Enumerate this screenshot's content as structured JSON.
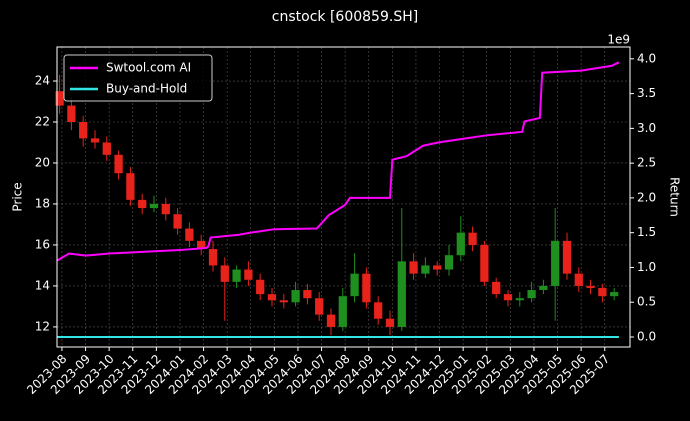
{
  "chart_data": {
    "type": "candlestick",
    "title": "cnstock [600859.SH]",
    "ylabel": "Price",
    "y2label": "Return",
    "y2_offset_label": "1e9",
    "xlim": [
      -0.21,
      24.07
    ],
    "xticks": [
      {
        "value": 0,
        "label": "2023-08"
      },
      {
        "value": 1,
        "label": "2023-09"
      },
      {
        "value": 2,
        "label": "2023-10"
      },
      {
        "value": 3,
        "label": "2023-11"
      },
      {
        "value": 4,
        "label": "2023-12"
      },
      {
        "value": 5,
        "label": "2024-01"
      },
      {
        "value": 6,
        "label": "2024-02"
      },
      {
        "value": 7,
        "label": "2024-03"
      },
      {
        "value": 8,
        "label": "2024-04"
      },
      {
        "value": 9,
        "label": "2024-05"
      },
      {
        "value": 10,
        "label": "2024-06"
      },
      {
        "value": 11,
        "label": "2024-07"
      },
      {
        "value": 12,
        "label": "2024-08"
      },
      {
        "value": 13,
        "label": "2024-09"
      },
      {
        "value": 14,
        "label": "2024-10"
      },
      {
        "value": 15,
        "label": "2024-11"
      },
      {
        "value": 16,
        "label": "2024-12"
      },
      {
        "value": 17,
        "label": "2025-01"
      },
      {
        "value": 18,
        "label": "2025-02"
      },
      {
        "value": 19,
        "label": "2025-03"
      },
      {
        "value": 20,
        "label": "2025-04"
      },
      {
        "value": 21,
        "label": "2025-05"
      },
      {
        "value": 22,
        "label": "2025-06"
      },
      {
        "value": 23,
        "label": "2025-07"
      }
    ],
    "ylim": [
      11.02,
      25.66
    ],
    "yticks": [
      12,
      14,
      16,
      18,
      20,
      22,
      24
    ],
    "y2lim": [
      -0.144,
      4.17
    ],
    "y2ticks": [
      {
        "value": 0,
        "label": "0.0"
      },
      {
        "value": 0.5,
        "label": "0.5"
      },
      {
        "value": 1,
        "label": "1.0"
      },
      {
        "value": 1.5,
        "label": "1.5"
      },
      {
        "value": 2,
        "label": "2.0"
      },
      {
        "value": 2.5,
        "label": "2.5"
      },
      {
        "value": 3,
        "label": "3.0"
      },
      {
        "value": 3.5,
        "label": "3.5"
      },
      {
        "value": 4,
        "label": "4.0"
      }
    ],
    "grid": true,
    "legend": "upper left",
    "up_color": "#1f8f1f",
    "down_color": "#e8231c",
    "candles": {
      "x": [
        -0.1,
        0.4,
        0.9,
        1.4,
        1.9,
        2.4,
        2.9,
        3.4,
        3.9,
        4.4,
        4.9,
        5.4,
        5.9,
        6.4,
        6.9,
        7.4,
        7.9,
        8.4,
        8.9,
        9.4,
        9.9,
        10.4,
        10.9,
        11.4,
        11.9,
        12.4,
        12.9,
        13.4,
        13.9,
        14.4,
        14.9,
        15.4,
        15.9,
        16.4,
        16.9,
        17.4,
        17.9,
        18.4,
        18.9,
        19.4,
        19.9,
        20.4,
        20.9,
        21.4,
        21.9,
        22.4,
        22.9,
        23.4
      ],
      "open": [
        23.5,
        22.8,
        22.0,
        21.2,
        21.0,
        20.4,
        19.5,
        18.2,
        17.8,
        18.0,
        17.5,
        16.8,
        16.2,
        15.8,
        15.0,
        14.2,
        14.8,
        14.3,
        13.6,
        13.3,
        13.2,
        13.8,
        13.4,
        12.6,
        12.0,
        13.5,
        14.6,
        13.2,
        12.4,
        12.0,
        15.2,
        14.6,
        15.0,
        14.8,
        15.5,
        16.6,
        16.0,
        14.2,
        13.6,
        13.3,
        13.4,
        13.8,
        14.0,
        16.2,
        14.6,
        14.0,
        13.9,
        13.5
      ],
      "close": [
        22.8,
        22.0,
        21.2,
        21.0,
        20.4,
        19.5,
        18.2,
        17.8,
        18.0,
        17.5,
        16.8,
        16.2,
        15.8,
        15.0,
        14.2,
        14.8,
        14.3,
        13.6,
        13.3,
        13.2,
        13.8,
        13.4,
        12.6,
        12.0,
        13.5,
        14.6,
        13.2,
        12.4,
        12.0,
        15.2,
        14.6,
        15.0,
        14.8,
        15.5,
        16.6,
        16.0,
        14.2,
        13.6,
        13.3,
        13.4,
        13.8,
        14.0,
        16.2,
        14.6,
        14.0,
        13.9,
        13.5,
        13.7
      ],
      "high": [
        24.3,
        23.2,
        22.3,
        21.6,
        21.3,
        20.6,
        19.8,
        18.5,
        18.4,
        18.3,
        17.8,
        17.1,
        16.5,
        16.2,
        15.4,
        15.0,
        15.2,
        14.6,
        13.9,
        13.6,
        14.2,
        14.1,
        13.7,
        12.9,
        13.9,
        15.6,
        14.9,
        13.5,
        12.8,
        17.8,
        15.6,
        15.4,
        15.2,
        16.0,
        17.4,
        16.9,
        16.2,
        14.4,
        13.8,
        13.7,
        14.2,
        14.3,
        17.8,
        16.6,
        14.9,
        14.3,
        14.1,
        13.9
      ],
      "low": [
        22.4,
        21.6,
        20.8,
        20.7,
        20.1,
        19.2,
        17.9,
        17.5,
        17.6,
        17.2,
        16.5,
        15.9,
        15.5,
        14.7,
        12.3,
        13.9,
        14.0,
        13.3,
        13.0,
        12.9,
        13.0,
        13.1,
        12.3,
        11.6,
        11.8,
        13.2,
        12.9,
        12.1,
        11.6,
        11.8,
        14.3,
        14.4,
        14.5,
        14.5,
        15.2,
        15.7,
        14.0,
        13.4,
        13.0,
        13.0,
        13.2,
        13.6,
        12.3,
        14.3,
        13.7,
        13.6,
        13.2,
        13.3
      ]
    },
    "series": [
      {
        "name": "Swtool.com AI",
        "color": "#ff00ff",
        "axis": "y2",
        "x": [
          -0.2,
          0.3,
          1,
          2,
          5,
          6.1,
          6.2,
          6.3,
          7.5,
          8,
          9,
          10.8,
          11.3,
          12.0,
          12.2,
          13.9,
          14.0,
          14.6,
          15.3,
          16,
          17,
          18,
          19.5,
          19.6,
          20.25,
          20.35,
          22,
          23.3,
          23.6
        ],
        "values": [
          1.1,
          1.2,
          1.17,
          1.2,
          1.25,
          1.28,
          1.3,
          1.43,
          1.47,
          1.5,
          1.55,
          1.56,
          1.75,
          1.9,
          2.0,
          2.0,
          2.55,
          2.6,
          2.75,
          2.8,
          2.85,
          2.9,
          2.95,
          3.1,
          3.15,
          3.8,
          3.83,
          3.9,
          3.95
        ]
      },
      {
        "name": "Buy-and-Hold",
        "color": "#33e6e6",
        "axis": "y2",
        "x": [
          -0.2,
          23.6
        ],
        "values": [
          0,
          0
        ]
      }
    ]
  }
}
